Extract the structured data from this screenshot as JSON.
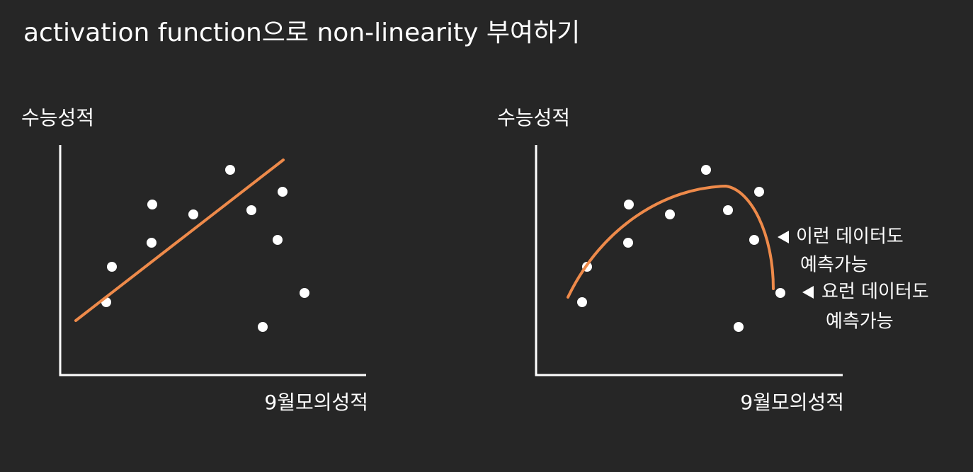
{
  "title": "activation function으로 non-linearity 부여하기",
  "panels": [
    {
      "y_label": "수능성적",
      "x_label": "9월모의성적"
    },
    {
      "y_label": "수능성적",
      "x_label": "9월모의성적",
      "annotations": [
        {
          "lines": [
            "이런 데이터도",
            "예측가능"
          ]
        },
        {
          "lines": [
            "요런 데이터도",
            "예측가능"
          ]
        }
      ]
    }
  ]
}
